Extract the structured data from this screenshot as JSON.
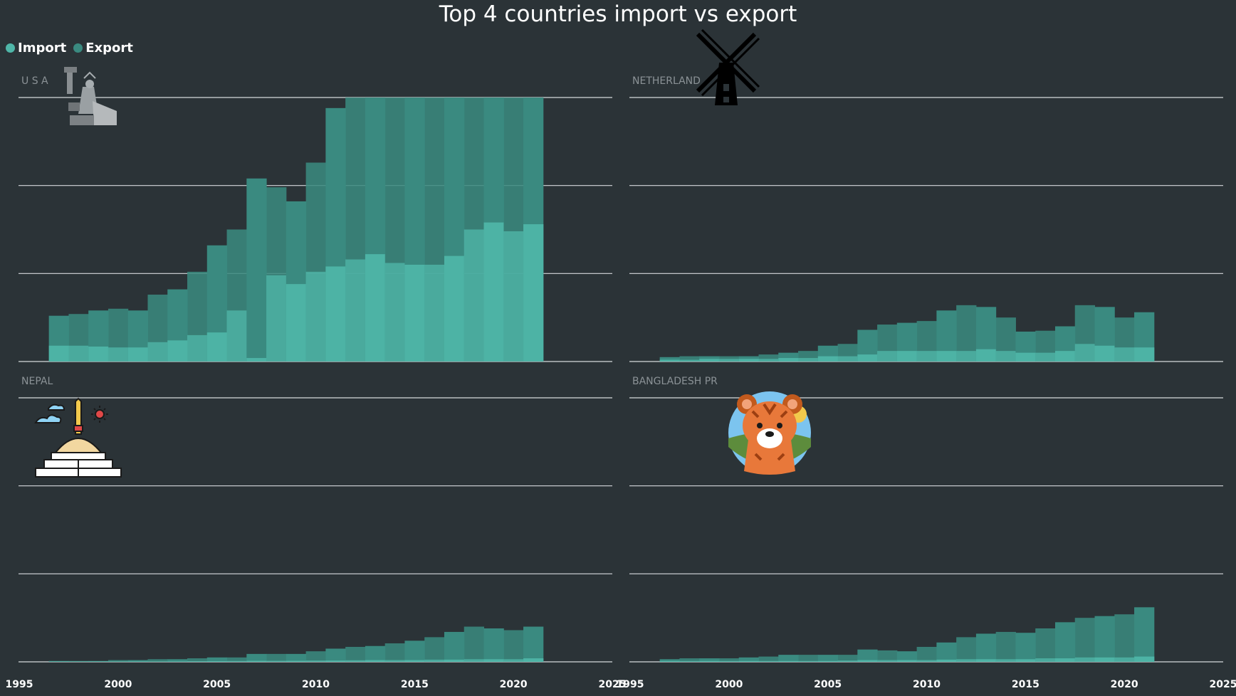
{
  "title": "Top 4 countries import vs export",
  "legend": [
    {
      "label": "Import",
      "color": "#4fb6a8"
    },
    {
      "label": "Export",
      "color": "#3a8a80"
    }
  ],
  "x_ticks": [
    "1995",
    "2000",
    "2005",
    "2010",
    "2015",
    "2020",
    "2025"
  ],
  "chart_data": [
    {
      "type": "area",
      "label": "U S A",
      "icon": "statue-of-liberty-icon",
      "x": [
        1997,
        1998,
        1999,
        2000,
        2001,
        2002,
        2003,
        2004,
        2005,
        2006,
        2007,
        2008,
        2009,
        2010,
        2011,
        2012,
        2013,
        2014,
        2015,
        2016,
        2017,
        2018,
        2019,
        2020,
        2021
      ],
      "xlim": [
        1995,
        2025
      ],
      "ylim": [
        0,
        3
      ],
      "series": [
        {
          "name": "Import",
          "values": [
            0.18,
            0.18,
            0.17,
            0.16,
            0.16,
            0.22,
            0.24,
            0.3,
            0.33,
            0.58,
            0.04,
            0.98,
            0.88,
            1.02,
            1.08,
            1.16,
            1.22,
            1.12,
            1.1,
            1.1,
            1.2,
            1.5,
            1.58,
            1.48,
            1.56
          ]
        },
        {
          "name": "Export",
          "values": [
            0.52,
            0.54,
            0.58,
            0.6,
            0.58,
            0.76,
            0.82,
            1.02,
            1.32,
            1.5,
            2.08,
            1.98,
            1.82,
            2.26,
            2.88,
            3.0,
            3.0,
            3.0,
            3.0,
            3.0,
            3.0,
            3.0,
            3.0,
            3.0,
            3.0
          ]
        }
      ]
    },
    {
      "type": "area",
      "label": "NETHERLAND",
      "icon": "windmill-icon",
      "x": [
        1997,
        1998,
        1999,
        2000,
        2001,
        2002,
        2003,
        2004,
        2005,
        2006,
        2007,
        2008,
        2009,
        2010,
        2011,
        2012,
        2013,
        2014,
        2015,
        2016,
        2017,
        2018,
        2019,
        2020,
        2021
      ],
      "xlim": [
        1995,
        2025
      ],
      "ylim": [
        0,
        3
      ],
      "series": [
        {
          "name": "Import",
          "values": [
            0.02,
            0.02,
            0.03,
            0.03,
            0.03,
            0.03,
            0.04,
            0.04,
            0.06,
            0.06,
            0.08,
            0.12,
            0.12,
            0.12,
            0.12,
            0.12,
            0.14,
            0.12,
            0.1,
            0.1,
            0.12,
            0.2,
            0.18,
            0.16,
            0.16
          ]
        },
        {
          "name": "Export",
          "values": [
            0.05,
            0.06,
            0.06,
            0.06,
            0.06,
            0.08,
            0.1,
            0.12,
            0.18,
            0.2,
            0.36,
            0.42,
            0.44,
            0.46,
            0.58,
            0.64,
            0.62,
            0.5,
            0.34,
            0.35,
            0.4,
            0.64,
            0.62,
            0.5,
            0.56
          ]
        }
      ]
    },
    {
      "type": "area",
      "label": "NEPAL",
      "icon": "stupa-icon",
      "x": [
        1997,
        1998,
        1999,
        2000,
        2001,
        2002,
        2003,
        2004,
        2005,
        2006,
        2007,
        2008,
        2009,
        2010,
        2011,
        2012,
        2013,
        2014,
        2015,
        2016,
        2017,
        2018,
        2019,
        2020,
        2021
      ],
      "xlim": [
        1995,
        2025
      ],
      "ylim": [
        0,
        3
      ],
      "series": [
        {
          "name": "Import",
          "values": [
            0.005,
            0.005,
            0.005,
            0.005,
            0.005,
            0.005,
            0.005,
            0.008,
            0.008,
            0.01,
            0.012,
            0.012,
            0.012,
            0.015,
            0.015,
            0.018,
            0.02,
            0.02,
            0.02,
            0.025,
            0.025,
            0.03,
            0.03,
            0.03,
            0.04
          ]
        },
        {
          "name": "Export",
          "values": [
            0.01,
            0.01,
            0.01,
            0.02,
            0.02,
            0.03,
            0.03,
            0.04,
            0.05,
            0.05,
            0.09,
            0.09,
            0.09,
            0.12,
            0.15,
            0.17,
            0.18,
            0.21,
            0.24,
            0.28,
            0.34,
            0.4,
            0.38,
            0.36,
            0.4
          ]
        }
      ]
    },
    {
      "type": "area",
      "label": "BANGLADESH PR",
      "icon": "tiger-icon",
      "x": [
        1997,
        1998,
        1999,
        2000,
        2001,
        2002,
        2003,
        2004,
        2005,
        2006,
        2007,
        2008,
        2009,
        2010,
        2011,
        2012,
        2013,
        2014,
        2015,
        2016,
        2017,
        2018,
        2019,
        2020,
        2021
      ],
      "xlim": [
        1995,
        2025
      ],
      "ylim": [
        0,
        3
      ],
      "series": [
        {
          "name": "Import",
          "values": [
            0.01,
            0.01,
            0.01,
            0.01,
            0.01,
            0.01,
            0.01,
            0.01,
            0.01,
            0.015,
            0.02,
            0.02,
            0.02,
            0.02,
            0.025,
            0.03,
            0.03,
            0.03,
            0.03,
            0.04,
            0.04,
            0.05,
            0.05,
            0.05,
            0.06
          ]
        },
        {
          "name": "Export",
          "values": [
            0.03,
            0.04,
            0.04,
            0.04,
            0.05,
            0.06,
            0.08,
            0.08,
            0.08,
            0.08,
            0.14,
            0.13,
            0.12,
            0.17,
            0.22,
            0.28,
            0.32,
            0.34,
            0.33,
            0.38,
            0.45,
            0.5,
            0.52,
            0.54,
            0.62
          ]
        }
      ]
    }
  ]
}
